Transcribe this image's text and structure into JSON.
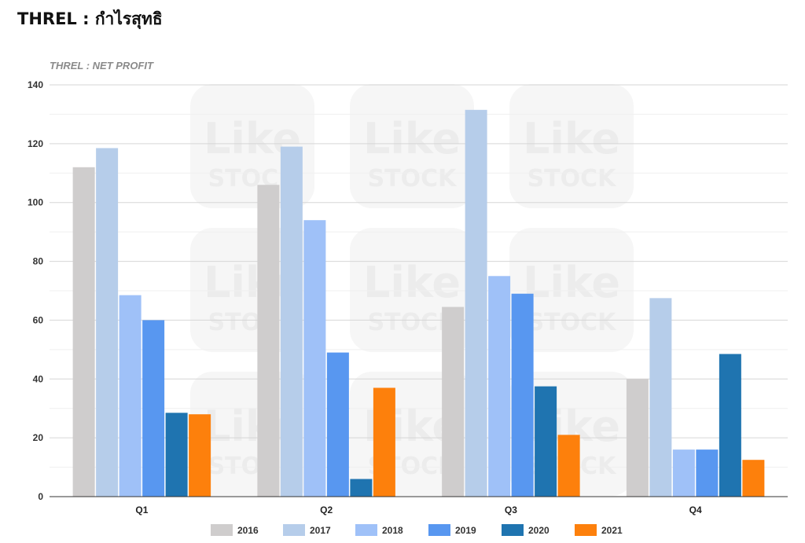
{
  "page": {
    "title": "THREL : กำไรสุทธิ"
  },
  "watermark": {
    "line1": "Like",
    "line2": "STOCK"
  },
  "chart_data": {
    "type": "bar",
    "title": "THREL : NET PROFIT",
    "xlabel": "",
    "ylabel": "",
    "categories": [
      "Q1",
      "Q2",
      "Q3",
      "Q4"
    ],
    "ylim": [
      0,
      140
    ],
    "yticks": [
      0,
      20,
      40,
      60,
      80,
      100,
      120,
      140
    ],
    "grid": true,
    "legend_position": "bottom",
    "series": [
      {
        "name": "2016",
        "color": "#cfcdcd",
        "values": [
          112,
          106,
          64.5,
          40
        ]
      },
      {
        "name": "2017",
        "color": "#b6cdea",
        "values": [
          118.5,
          119,
          131.5,
          67.5
        ]
      },
      {
        "name": "2018",
        "color": "#9fc1f8",
        "values": [
          68.5,
          94,
          75,
          16
        ]
      },
      {
        "name": "2019",
        "color": "#5897f0",
        "values": [
          60,
          49,
          69,
          16
        ]
      },
      {
        "name": "2020",
        "color": "#1f74b0",
        "values": [
          28.5,
          6,
          37.5,
          48.5
        ]
      },
      {
        "name": "2021",
        "color": "#fd800c",
        "values": [
          28,
          37,
          21,
          12.5
        ]
      }
    ]
  }
}
